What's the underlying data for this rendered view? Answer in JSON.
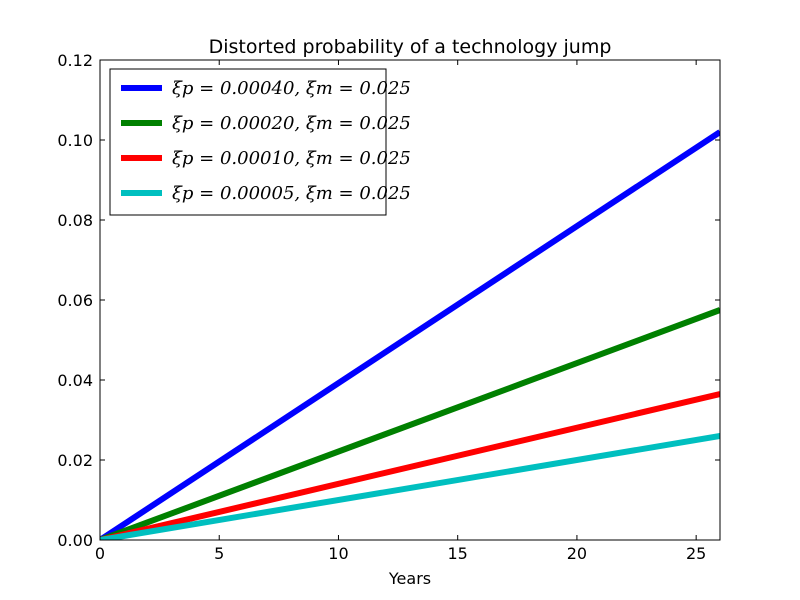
{
  "chart_data": {
    "type": "line",
    "title": "Distorted probability of a technology jump",
    "xlabel": "Years",
    "ylabel": "",
    "xlim": [
      0,
      26
    ],
    "ylim": [
      0,
      0.12
    ],
    "xticks": [
      0,
      5,
      10,
      15,
      20,
      25
    ],
    "yticks": [
      0.0,
      0.02,
      0.04,
      0.06,
      0.08,
      0.1,
      0.12
    ],
    "xtick_labels": [
      "0",
      "5",
      "10",
      "15",
      "20",
      "25"
    ],
    "ytick_labels": [
      "0.00",
      "0.02",
      "0.04",
      "0.06",
      "0.08",
      "0.10",
      "0.12"
    ],
    "grid": false,
    "legend_position": "top-left",
    "series": [
      {
        "name": "ξp = 0.00040, ξm = 0.025",
        "color": "#0000ff",
        "x": [
          0,
          26
        ],
        "y": [
          0,
          0.102
        ]
      },
      {
        "name": "ξp = 0.00020, ξm = 0.025",
        "color": "#008000",
        "x": [
          0,
          26
        ],
        "y": [
          0,
          0.0575
        ]
      },
      {
        "name": "ξp = 0.00010, ξm = 0.025",
        "color": "#ff0000",
        "x": [
          0,
          26
        ],
        "y": [
          0,
          0.0365
        ]
      },
      {
        "name": "ξp = 0.00005, ξm = 0.025",
        "color": "#00bfbf",
        "x": [
          0,
          26
        ],
        "y": [
          0,
          0.026
        ]
      }
    ]
  }
}
